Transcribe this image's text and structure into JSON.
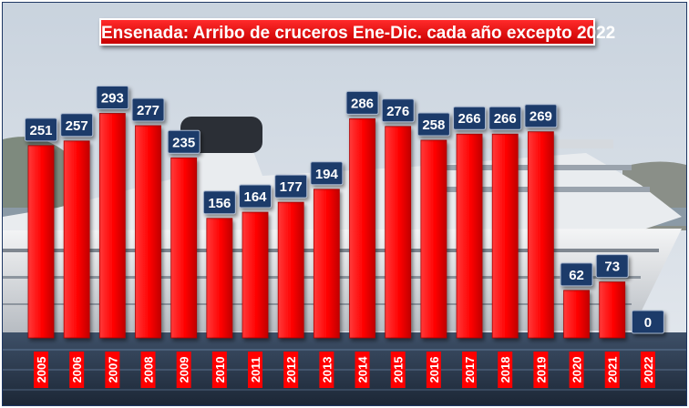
{
  "chart_data": {
    "type": "bar",
    "title": "Ensenada: Arribo de cruceros Ene-Dic. cada año excepto 2022",
    "categories": [
      "2005",
      "2006",
      "2007",
      "2008",
      "2009",
      "2010",
      "2011",
      "2012",
      "2013",
      "2014",
      "2015",
      "2016",
      "2017",
      "2018",
      "2019",
      "2020",
      "2021",
      "2022"
    ],
    "values": [
      251,
      257,
      293,
      277,
      235,
      156,
      164,
      177,
      194,
      286,
      276,
      258,
      266,
      266,
      269,
      62,
      73,
      0
    ],
    "ylim": [
      0,
      330
    ],
    "grid": false,
    "legend": "none",
    "colors": {
      "bar": "#ff0000",
      "bar_dark": "#b00000",
      "label_bg": "#1f3a6b",
      "label_text": "#ffffff",
      "tick_bg": "#ff0000",
      "tick_text": "#ffffff",
      "title_bg": "#e00000"
    }
  }
}
